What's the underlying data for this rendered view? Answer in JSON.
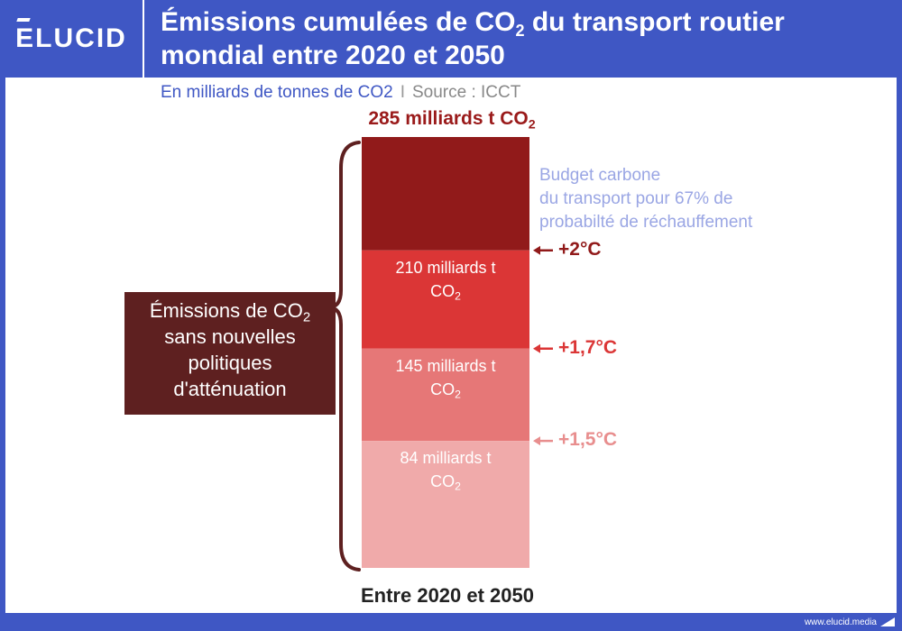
{
  "header": {
    "logo_text": "ELUCID",
    "title_part1": "Émissions cumulées de CO",
    "title_sub": "2",
    "title_part2": " du transport routier mondial entre 2020 et 2050"
  },
  "subtitle": {
    "unit": "En milliards de tonnes de CO2",
    "separator": "I",
    "source": "Source : ICCT"
  },
  "chart_data": {
    "type": "bar",
    "stacked": true,
    "unit": "milliards t CO2",
    "ylim": [
      0,
      285
    ],
    "total": {
      "value": 285,
      "label": "285 milliards t CO",
      "sub": "2"
    },
    "segments": [
      {
        "value": 84,
        "label_line1": "84 milliards t",
        "label_line2": "CO",
        "label_sub": "2",
        "color": "#f0aaaa"
      },
      {
        "value": 145,
        "label_line1": "145 milliards t",
        "label_line2": "CO",
        "label_sub": "2",
        "color": "#e67777"
      },
      {
        "value": 210,
        "label_line1": "210 milliards t",
        "label_line2": "CO",
        "label_sub": "2",
        "color": "#db3636"
      },
      {
        "value": 285,
        "color": "#911a1a"
      }
    ],
    "thresholds": [
      {
        "value": 84,
        "label": "+1,5°C",
        "color": "#e88e8e"
      },
      {
        "value": 145,
        "label": "+1,7°C",
        "color": "#db3636"
      },
      {
        "value": 210,
        "label": "+2°C",
        "color": "#911a1a"
      }
    ],
    "budget_note": [
      "Budget carbone",
      "du transport pour 67% de",
      "probabilté de réchauffement"
    ],
    "side_label": {
      "line1": "Émissions de CO",
      "line1_sub": "2",
      "line2": "sans nouvelles",
      "line3": "politiques",
      "line4": "d'atténuation"
    },
    "xlabel": "Entre 2020 et 2050"
  },
  "footer": {
    "website": "www.elucid.media"
  }
}
